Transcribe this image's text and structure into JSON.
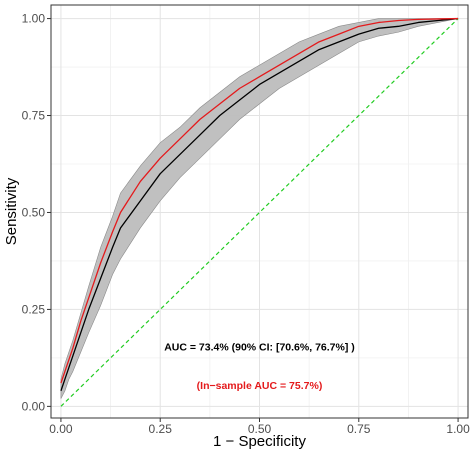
{
  "chart_data": {
    "type": "line",
    "title": "",
    "xlabel": "1 − Specificity",
    "ylabel": "Sensitivity",
    "xlim": [
      -0.025,
      1.025
    ],
    "ylim": [
      -0.03,
      1.035
    ],
    "grid": true,
    "legend": "none",
    "x_ticks": [
      0.0,
      0.25,
      0.5,
      0.75,
      1.0
    ],
    "x_tick_labels": [
      "0.00",
      "0.25",
      "0.50",
      "0.75",
      "1.00"
    ],
    "y_ticks": [
      0.0,
      0.25,
      0.5,
      0.75,
      1.0
    ],
    "y_tick_labels": [
      "0.00",
      "0.25",
      "0.50",
      "0.75",
      "1.00"
    ],
    "series": [
      {
        "role": "cross-validated mean ROC",
        "color": "#000000",
        "x": [
          0.0,
          0.01,
          0.02,
          0.03,
          0.05,
          0.07,
          0.1,
          0.13,
          0.15,
          0.2,
          0.25,
          0.3,
          0.35,
          0.4,
          0.45,
          0.5,
          0.55,
          0.6,
          0.65,
          0.7,
          0.75,
          0.8,
          0.85,
          0.9,
          0.95,
          1.0
        ],
        "y": [
          0.04,
          0.07,
          0.1,
          0.13,
          0.19,
          0.25,
          0.33,
          0.41,
          0.46,
          0.53,
          0.6,
          0.65,
          0.7,
          0.75,
          0.79,
          0.83,
          0.86,
          0.89,
          0.92,
          0.94,
          0.96,
          0.975,
          0.98,
          0.99,
          0.995,
          1.0
        ]
      },
      {
        "role": "in-sample ROC",
        "color": "#e41a1c",
        "x": [
          0.0,
          0.01,
          0.02,
          0.03,
          0.05,
          0.07,
          0.1,
          0.13,
          0.15,
          0.2,
          0.25,
          0.3,
          0.35,
          0.4,
          0.45,
          0.5,
          0.55,
          0.6,
          0.65,
          0.7,
          0.75,
          0.8,
          0.85,
          0.9,
          0.95,
          1.0
        ],
        "y": [
          0.06,
          0.09,
          0.12,
          0.15,
          0.22,
          0.28,
          0.37,
          0.45,
          0.5,
          0.58,
          0.64,
          0.69,
          0.74,
          0.78,
          0.82,
          0.85,
          0.88,
          0.91,
          0.94,
          0.96,
          0.98,
          0.99,
          0.995,
          0.998,
          0.999,
          1.0
        ]
      }
    ],
    "confidence_band": {
      "color": "#bdbdbd",
      "x": [
        0.0,
        0.01,
        0.02,
        0.03,
        0.05,
        0.07,
        0.1,
        0.13,
        0.15,
        0.2,
        0.25,
        0.3,
        0.35,
        0.4,
        0.45,
        0.5,
        0.55,
        0.6,
        0.65,
        0.7,
        0.75,
        0.8,
        0.85,
        0.9,
        0.95,
        1.0
      ],
      "lower": [
        0.02,
        0.04,
        0.07,
        0.09,
        0.14,
        0.19,
        0.26,
        0.34,
        0.38,
        0.46,
        0.53,
        0.59,
        0.64,
        0.69,
        0.74,
        0.78,
        0.82,
        0.85,
        0.88,
        0.91,
        0.94,
        0.955,
        0.965,
        0.98,
        0.99,
        1.0
      ],
      "upper": [
        0.07,
        0.11,
        0.14,
        0.17,
        0.24,
        0.31,
        0.41,
        0.49,
        0.55,
        0.62,
        0.68,
        0.72,
        0.77,
        0.81,
        0.85,
        0.88,
        0.91,
        0.94,
        0.96,
        0.98,
        0.99,
        1.0,
        1.0,
        1.0,
        1.0,
        1.0
      ]
    },
    "reference_line": {
      "style": "dashed",
      "color": "#22cc22",
      "x": [
        0.0,
        1.0
      ],
      "y": [
        0.0,
        1.0
      ]
    },
    "annotations": [
      {
        "text": "AUC = 73.4% (90% CI: [70.6%, 76.7%] )",
        "color": "#000000",
        "x": 0.5,
        "y": 0.155
      },
      {
        "text": "(In−sample AUC = 75.7%)",
        "color": "#e41a1c",
        "x": 0.5,
        "y": 0.055
      }
    ]
  }
}
